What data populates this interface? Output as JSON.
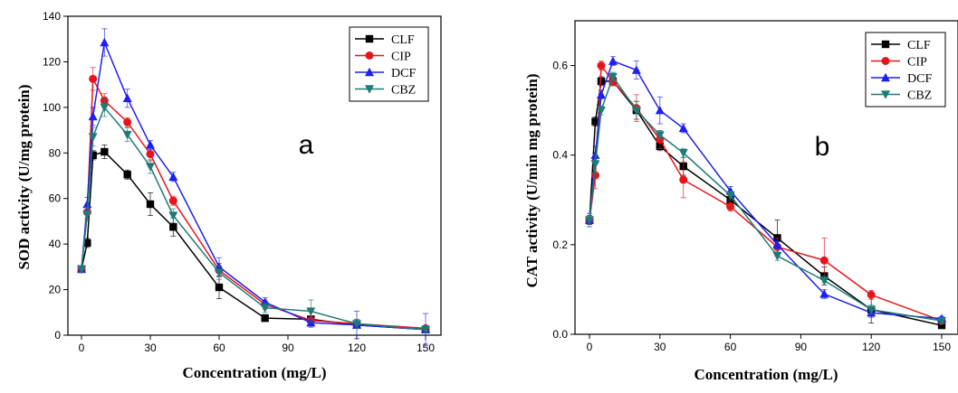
{
  "colors": {
    "CLF": "#000000",
    "CIP": "#e8141b",
    "DCF": "#1f1ff0",
    "CBZ": "#1e7b78"
  },
  "markers": {
    "CLF": "square",
    "CIP": "circle",
    "DCF": "triangle-up",
    "CBZ": "triangle-down"
  },
  "chart_data": [
    {
      "type": "line",
      "panel_label": "a",
      "xlabel": "Concentration (mg/L)",
      "ylabel": "SOD activity (U/mg protein)",
      "xlim": [
        0,
        150
      ],
      "ylim": [
        0,
        140
      ],
      "xticks": [
        0,
        30,
        60,
        90,
        120,
        150
      ],
      "yticks": [
        0,
        20,
        40,
        60,
        80,
        100,
        120,
        140
      ],
      "grid": false,
      "legend_position": "top-right",
      "x": [
        0,
        2.5,
        5,
        10,
        20,
        30,
        40,
        60,
        80,
        100,
        120,
        150
      ],
      "series": [
        {
          "name": "CLF",
          "values": [
            29,
            40.5,
            79,
            80.5,
            70.5,
            57.5,
            47.5,
            21,
            7.5,
            7,
            4.5,
            2.5
          ],
          "errors": [
            1.5,
            2,
            2,
            3,
            2,
            5,
            4,
            5,
            1.5,
            1.5,
            1.5,
            1
          ]
        },
        {
          "name": "CIP",
          "values": [
            29,
            54,
            112.5,
            103,
            93.5,
            79.5,
            59,
            28.5,
            13.5,
            6.5,
            5,
            3
          ],
          "errors": [
            1.5,
            3,
            5,
            3,
            2,
            3,
            2,
            3,
            2,
            2,
            2,
            1
          ]
        },
        {
          "name": "DCF",
          "values": [
            29,
            57.5,
            96,
            128.5,
            104,
            83.5,
            69.5,
            30,
            14.5,
            5.5,
            4.5,
            2.5
          ],
          "errors": [
            1.5,
            3,
            4,
            6,
            4,
            2,
            2,
            4,
            2,
            2,
            6,
            7
          ]
        },
        {
          "name": "CBZ",
          "values": [
            29,
            53,
            87,
            100,
            88,
            74,
            52.5,
            27.5,
            12,
            10.5,
            5,
            2.5
          ],
          "errors": [
            1.5,
            3,
            4,
            4,
            3,
            3,
            3,
            3,
            2,
            5,
            2,
            1
          ]
        }
      ]
    },
    {
      "type": "line",
      "panel_label": "b",
      "xlabel": "Concentration (mg/L)",
      "ylabel": "CAT activity (U/min mg protein)",
      "xlim": [
        0,
        150
      ],
      "ylim": [
        0,
        0.7
      ],
      "xticks": [
        0,
        30,
        60,
        90,
        120,
        150
      ],
      "yticks": [
        0.0,
        0.2,
        0.4,
        0.6
      ],
      "ytick_labels": [
        "0.0",
        "0.2",
        "0.4",
        "0.6"
      ],
      "grid": false,
      "legend_position": "top-right",
      "x": [
        0,
        2.5,
        5,
        10,
        20,
        30,
        40,
        60,
        80,
        100,
        120,
        150
      ],
      "series": [
        {
          "name": "CLF",
          "values": [
            0.255,
            0.475,
            0.565,
            0.565,
            0.5,
            0.42,
            0.375,
            0.3,
            0.215,
            0.13,
            0.055,
            0.02
          ],
          "errors": [
            0.01,
            0.01,
            0.01,
            0.01,
            0.02,
            0.01,
            0.02,
            0.01,
            0.04,
            0.02,
            0.03,
            0.005
          ]
        },
        {
          "name": "CIP",
          "values": [
            0.255,
            0.355,
            0.6,
            0.565,
            0.505,
            0.435,
            0.345,
            0.285,
            0.195,
            0.165,
            0.088,
            0.03
          ],
          "errors": [
            0.01,
            0.03,
            0.01,
            0.01,
            0.03,
            0.02,
            0.04,
            0.01,
            0.02,
            0.05,
            0.01,
            0.005
          ]
        },
        {
          "name": "DCF",
          "values": [
            0.255,
            0.4,
            0.535,
            0.61,
            0.59,
            0.5,
            0.46,
            0.32,
            0.2,
            0.09,
            0.048,
            0.035
          ],
          "errors": [
            0.015,
            0.02,
            0.01,
            0.01,
            0.02,
            0.03,
            0.01,
            0.01,
            0.01,
            0.01,
            0.01,
            0.005
          ]
        },
        {
          "name": "CBZ",
          "values": [
            0.255,
            0.38,
            0.5,
            0.575,
            0.5,
            0.445,
            0.405,
            0.31,
            0.175,
            0.12,
            0.055,
            0.03
          ],
          "errors": [
            0.01,
            0.02,
            0.01,
            0.01,
            0.02,
            0.01,
            0.01,
            0.01,
            0.01,
            0.01,
            0.01,
            0.005
          ]
        }
      ]
    }
  ]
}
